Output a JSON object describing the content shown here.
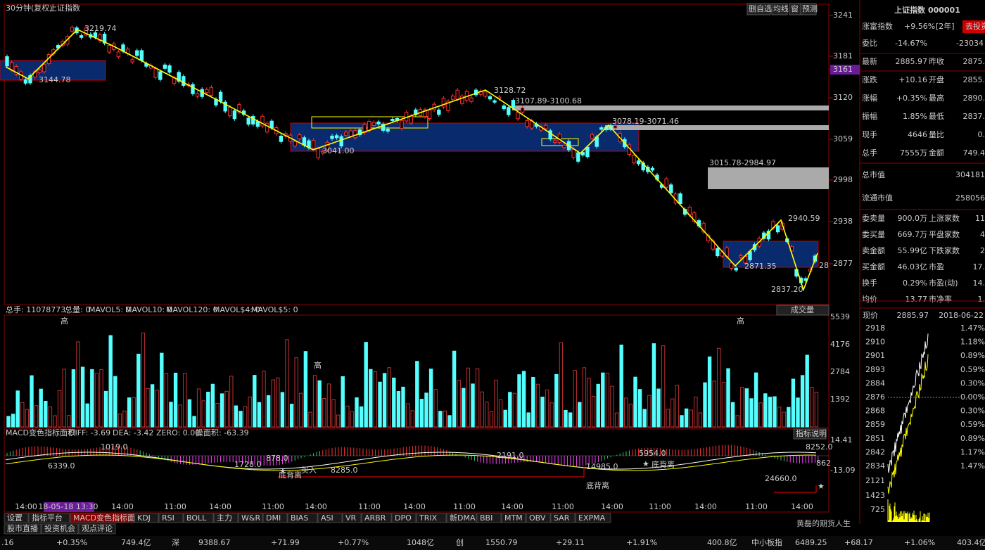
{
  "main": {
    "period": "30分钟(复权)",
    "name": "上证指数",
    "buttons": [
      "删自选",
      "均线",
      "窗",
      "预测"
    ],
    "axis": [
      "3241",
      "3181",
      "3161",
      "3120",
      "3059",
      "2998",
      "2938",
      "2877"
    ],
    "annotations": [
      "3219.74",
      "3144.78",
      "3128.72",
      "3107.89-3100.68",
      "3078.19-3071.46",
      "3041.00",
      "3015.78-2984.97",
      "2940.59",
      "2871.35",
      "2837.20",
      "28"
    ]
  },
  "volume": {
    "header": [
      "总手: 11078773",
      "总量: 0",
      "MAVOL5: 0",
      "MAVOL10: 0",
      "MAVOL120: 0",
      "MAVOL$4: 0",
      "MAVOL$5: 0"
    ],
    "selector": "成交量",
    "axis": [
      "5539",
      "4176",
      "2784",
      "1392"
    ],
    "marks": [
      "高",
      "高",
      "高"
    ]
  },
  "macd": {
    "header": [
      "MACD变色指标面积",
      "DIFF: -3.69",
      "DEA: -3.42",
      "ZERO: 0.00",
      "操面积: -63.39"
    ],
    "help": "指标说明",
    "axis": [
      "14.41",
      "-13.09"
    ],
    "annotations": [
      "6339.0",
      "1019.0",
      "1728.0",
      "878.0",
      "买入",
      "8285.0",
      "2191.0",
      "14985.0",
      "5954.0",
      "24660.0",
      "8252.0",
      "862",
      "底背离",
      "底背离",
      "底背离"
    ]
  },
  "xaxis": [
    "14:00",
    "18-05-18 13:30",
    "14:00",
    "11:00",
    "14:00",
    "11:00",
    "14:00",
    "11:00",
    "14:00",
    "11:00",
    "14:00",
    "11:00",
    "14:00",
    "11:00",
    "14:00",
    "11:00",
    "14:00"
  ],
  "tabs": [
    "设置",
    "指标平台",
    "MACD变色指标面积",
    "KDJ",
    "RSI",
    "BOLL",
    "主力",
    "W&R",
    "DMI",
    "BIAS",
    "ASI",
    "VR",
    "ARBR",
    "DPO",
    "TRIX",
    "新DMA",
    "BBI",
    "MTM",
    "OBV",
    "SAR",
    "EXPMA"
  ],
  "tabs2": [
    "股市直播",
    "投资机会",
    "观点评论"
  ],
  "quote": {
    "title": "上证指数 000001",
    "promo": "涨富指数",
    "promo_value": "+9.56%",
    "promo_period": "[2年]",
    "promo_button": "去投资",
    "ratio": [
      "委比",
      "-14.67%",
      "-23034"
    ],
    "rows": [
      [
        "最新",
        "2885.97",
        "昨收",
        "2875."
      ],
      [
        "涨跌",
        "+10.16",
        "开盘",
        "2855."
      ],
      [
        "涨幅",
        "+0.35%",
        "最高",
        "2890."
      ],
      [
        "振幅",
        "1.85%",
        "最低",
        "2837."
      ],
      [
        "现手",
        "4646",
        "量比",
        "0."
      ],
      [
        "总手",
        "7555万",
        "金额",
        "749.4"
      ]
    ],
    "caps": [
      [
        "总市值",
        "304181"
      ],
      [
        "流通市值",
        "258056"
      ]
    ],
    "rows2": [
      [
        "委卖量",
        "900.0万",
        "上涨家数",
        "11"
      ],
      [
        "委买量",
        "669.7万",
        "平盘家数",
        "4"
      ],
      [
        "卖金额",
        "55.99亿",
        "下跌家数",
        "2"
      ],
      [
        "买金额",
        "46.03亿",
        "市盈",
        "17."
      ],
      [
        "换手",
        "0.29%",
        "市盈(动)",
        "14."
      ],
      [
        "均价",
        "13.77",
        "市净率",
        "1."
      ]
    ]
  },
  "intraday": {
    "label": "现价",
    "price": "2885.97",
    "date": "2018-06-22",
    "axis": [
      "2918",
      "2910",
      "2901",
      "2893",
      "2884",
      "2876",
      "2868",
      "2859",
      "2851",
      "2842",
      "2834"
    ],
    "pct": [
      "1.47%",
      "1.18%",
      "0.89%",
      "0.59%",
      "0.30%",
      "0.00%",
      "0.30%",
      "0.59%",
      "0.89%",
      "1.17%",
      "1.47%"
    ],
    "vol_axis": [
      "2121",
      "1423",
      "725"
    ]
  },
  "ticker": [
    ".16",
    "+0.35%",
    "749.4亿",
    "深",
    "9388.67",
    "+71.99",
    "+0.77%",
    "1048亿",
    "创",
    "1550.79",
    "+29.11",
    "+1.91%",
    "400.8亿",
    "中小板指",
    "6489.25",
    "+68.17",
    "+1.06%",
    "403.4亿"
  ],
  "watermark": "黄磊的期货人生"
}
